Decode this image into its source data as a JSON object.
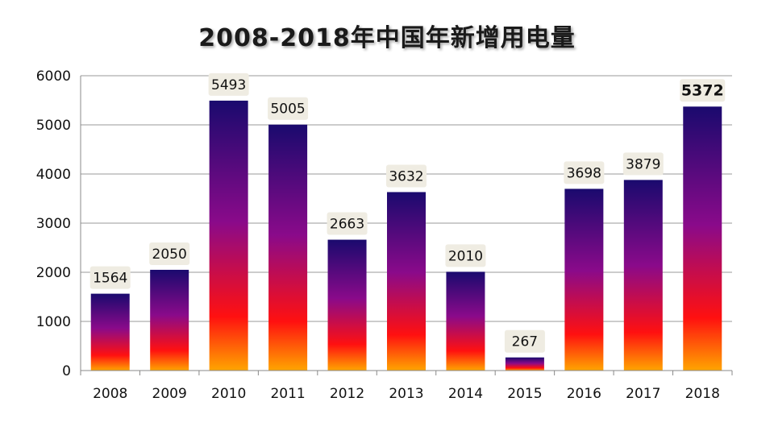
{
  "chart_data": {
    "type": "bar",
    "title": "2008-2018年中国年新增用电量",
    "categories": [
      "2008",
      "2009",
      "2010",
      "2011",
      "2012",
      "2013",
      "2014",
      "2015",
      "2016",
      "2017",
      "2018"
    ],
    "values": [
      1564,
      2050,
      5493,
      5005,
      2663,
      3632,
      2010,
      267,
      3698,
      3879,
      5372
    ],
    "data_labels": [
      "1564",
      "2050",
      "5493",
      "5005",
      "2663",
      "3632",
      "2010",
      "267",
      "3698",
      "3879",
      "5372"
    ],
    "ylim": [
      0,
      6000
    ],
    "yticks": [
      "0",
      "1000",
      "2000",
      "3000",
      "4000",
      "5000",
      "6000"
    ],
    "xlabel": "",
    "ylabel": "",
    "grid": true,
    "legend": "none",
    "bold_label_index": 10,
    "colors": {
      "bar_top": "#1a0a6e",
      "bar_mid": "#8a0a8a",
      "bar_low": "#ff1010",
      "bar_bottom": "#ffa500",
      "grid": "#9a9a9a",
      "label_bg": "#efece2"
    }
  }
}
